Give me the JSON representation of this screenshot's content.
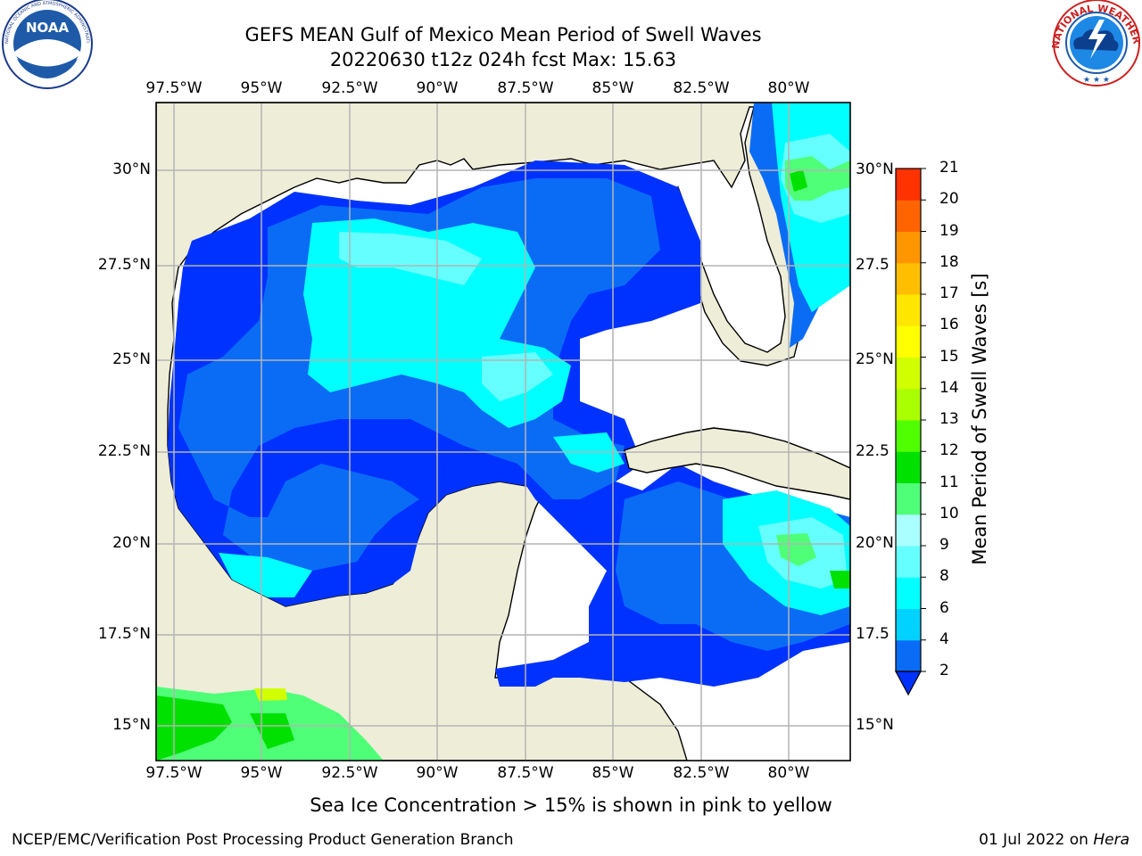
{
  "title_line1": "GEFS MEAN Gulf of Mexico Mean Period of Swell Waves",
  "title_line2": "20220630 t12z 024h fcst   Max: 15.63",
  "lon_labels": [
    "97.5°W",
    "95°W",
    "92.5°W",
    "90°W",
    "87.5°W",
    "85°W",
    "82.5°W",
    "80°W"
  ],
  "lat_labels_left": [
    "30°N",
    "27.5°N",
    "25°N",
    "22.5°N",
    "20°N",
    "17.5°N",
    "15°N"
  ],
  "lat_labels_right": [
    "30°N",
    "27.5",
    "25°N",
    "22.5",
    "20°N",
    "17.5",
    "15°N"
  ],
  "colorbar": {
    "title": "Mean Period of Swell Waves [s]",
    "ticks": [
      "2",
      "4",
      "6",
      "8",
      "9",
      "10",
      "11",
      "12",
      "13",
      "14",
      "15",
      "16",
      "17",
      "18",
      "19",
      "20",
      "21"
    ],
    "colors": [
      "#0a6cf5",
      "#00d2ff",
      "#00ffff",
      "#66ffff",
      "#aaffff",
      "#50ff78",
      "#00e100",
      "#50ff00",
      "#aaff00",
      "#d2ff00",
      "#ffff00",
      "#ffe600",
      "#ffbe00",
      "#ff9600",
      "#ff6400",
      "#ff3200",
      "#ff0000"
    ]
  },
  "sea_ice_note": "Sea Ice Concentration > 15% is shown in pink to yellow",
  "credit": "NCEP/EMC/Verification Post Processing Product Generation Branch",
  "date_footer": {
    "date": "01 Jul 2022 on",
    "host": "Hera"
  },
  "noaa_logo": {
    "text": "NOAA",
    "ring_text": "NATIONAL OCEANIC AND ATMOSPHERIC ADMINISTRATION · U.S. DEPARTMENT OF COMMERCE"
  },
  "nws_logo": {
    "ring_text": "NATIONAL WEATHER SERVICE"
  },
  "map_colors": {
    "land": "#eeedd8",
    "ocean_no_data": "#ffffff",
    "grid": "#b4b4b4"
  }
}
